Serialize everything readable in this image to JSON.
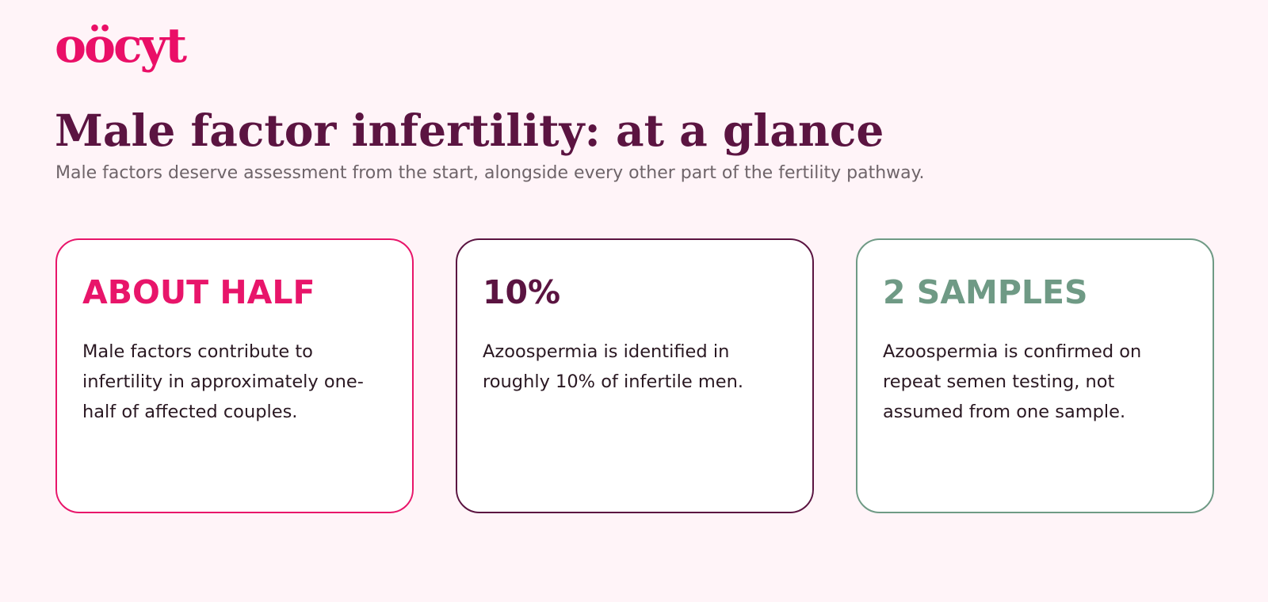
{
  "brand": {
    "logo_text": "oöcyt",
    "color": "#ea0f67"
  },
  "page": {
    "title": "Male factor infertility: at a glance",
    "subtitle": "Male factors deserve assessment from the start, alongside every other part of the fertility pathway."
  },
  "cards": [
    {
      "stat": "ABOUT HALF",
      "description": "Male factors contribute to infertility in approximately one-half of affected couples.",
      "accent": "#e8156a"
    },
    {
      "stat": "10%",
      "description": "Azoospermia is identified in roughly 10% of infertile men.",
      "accent": "#5b1441"
    },
    {
      "stat": "2 SAMPLES",
      "description": "Azoospermia is confirmed on repeat semen testing, not assumed from one sample.",
      "accent": "#6f9a85"
    }
  ]
}
